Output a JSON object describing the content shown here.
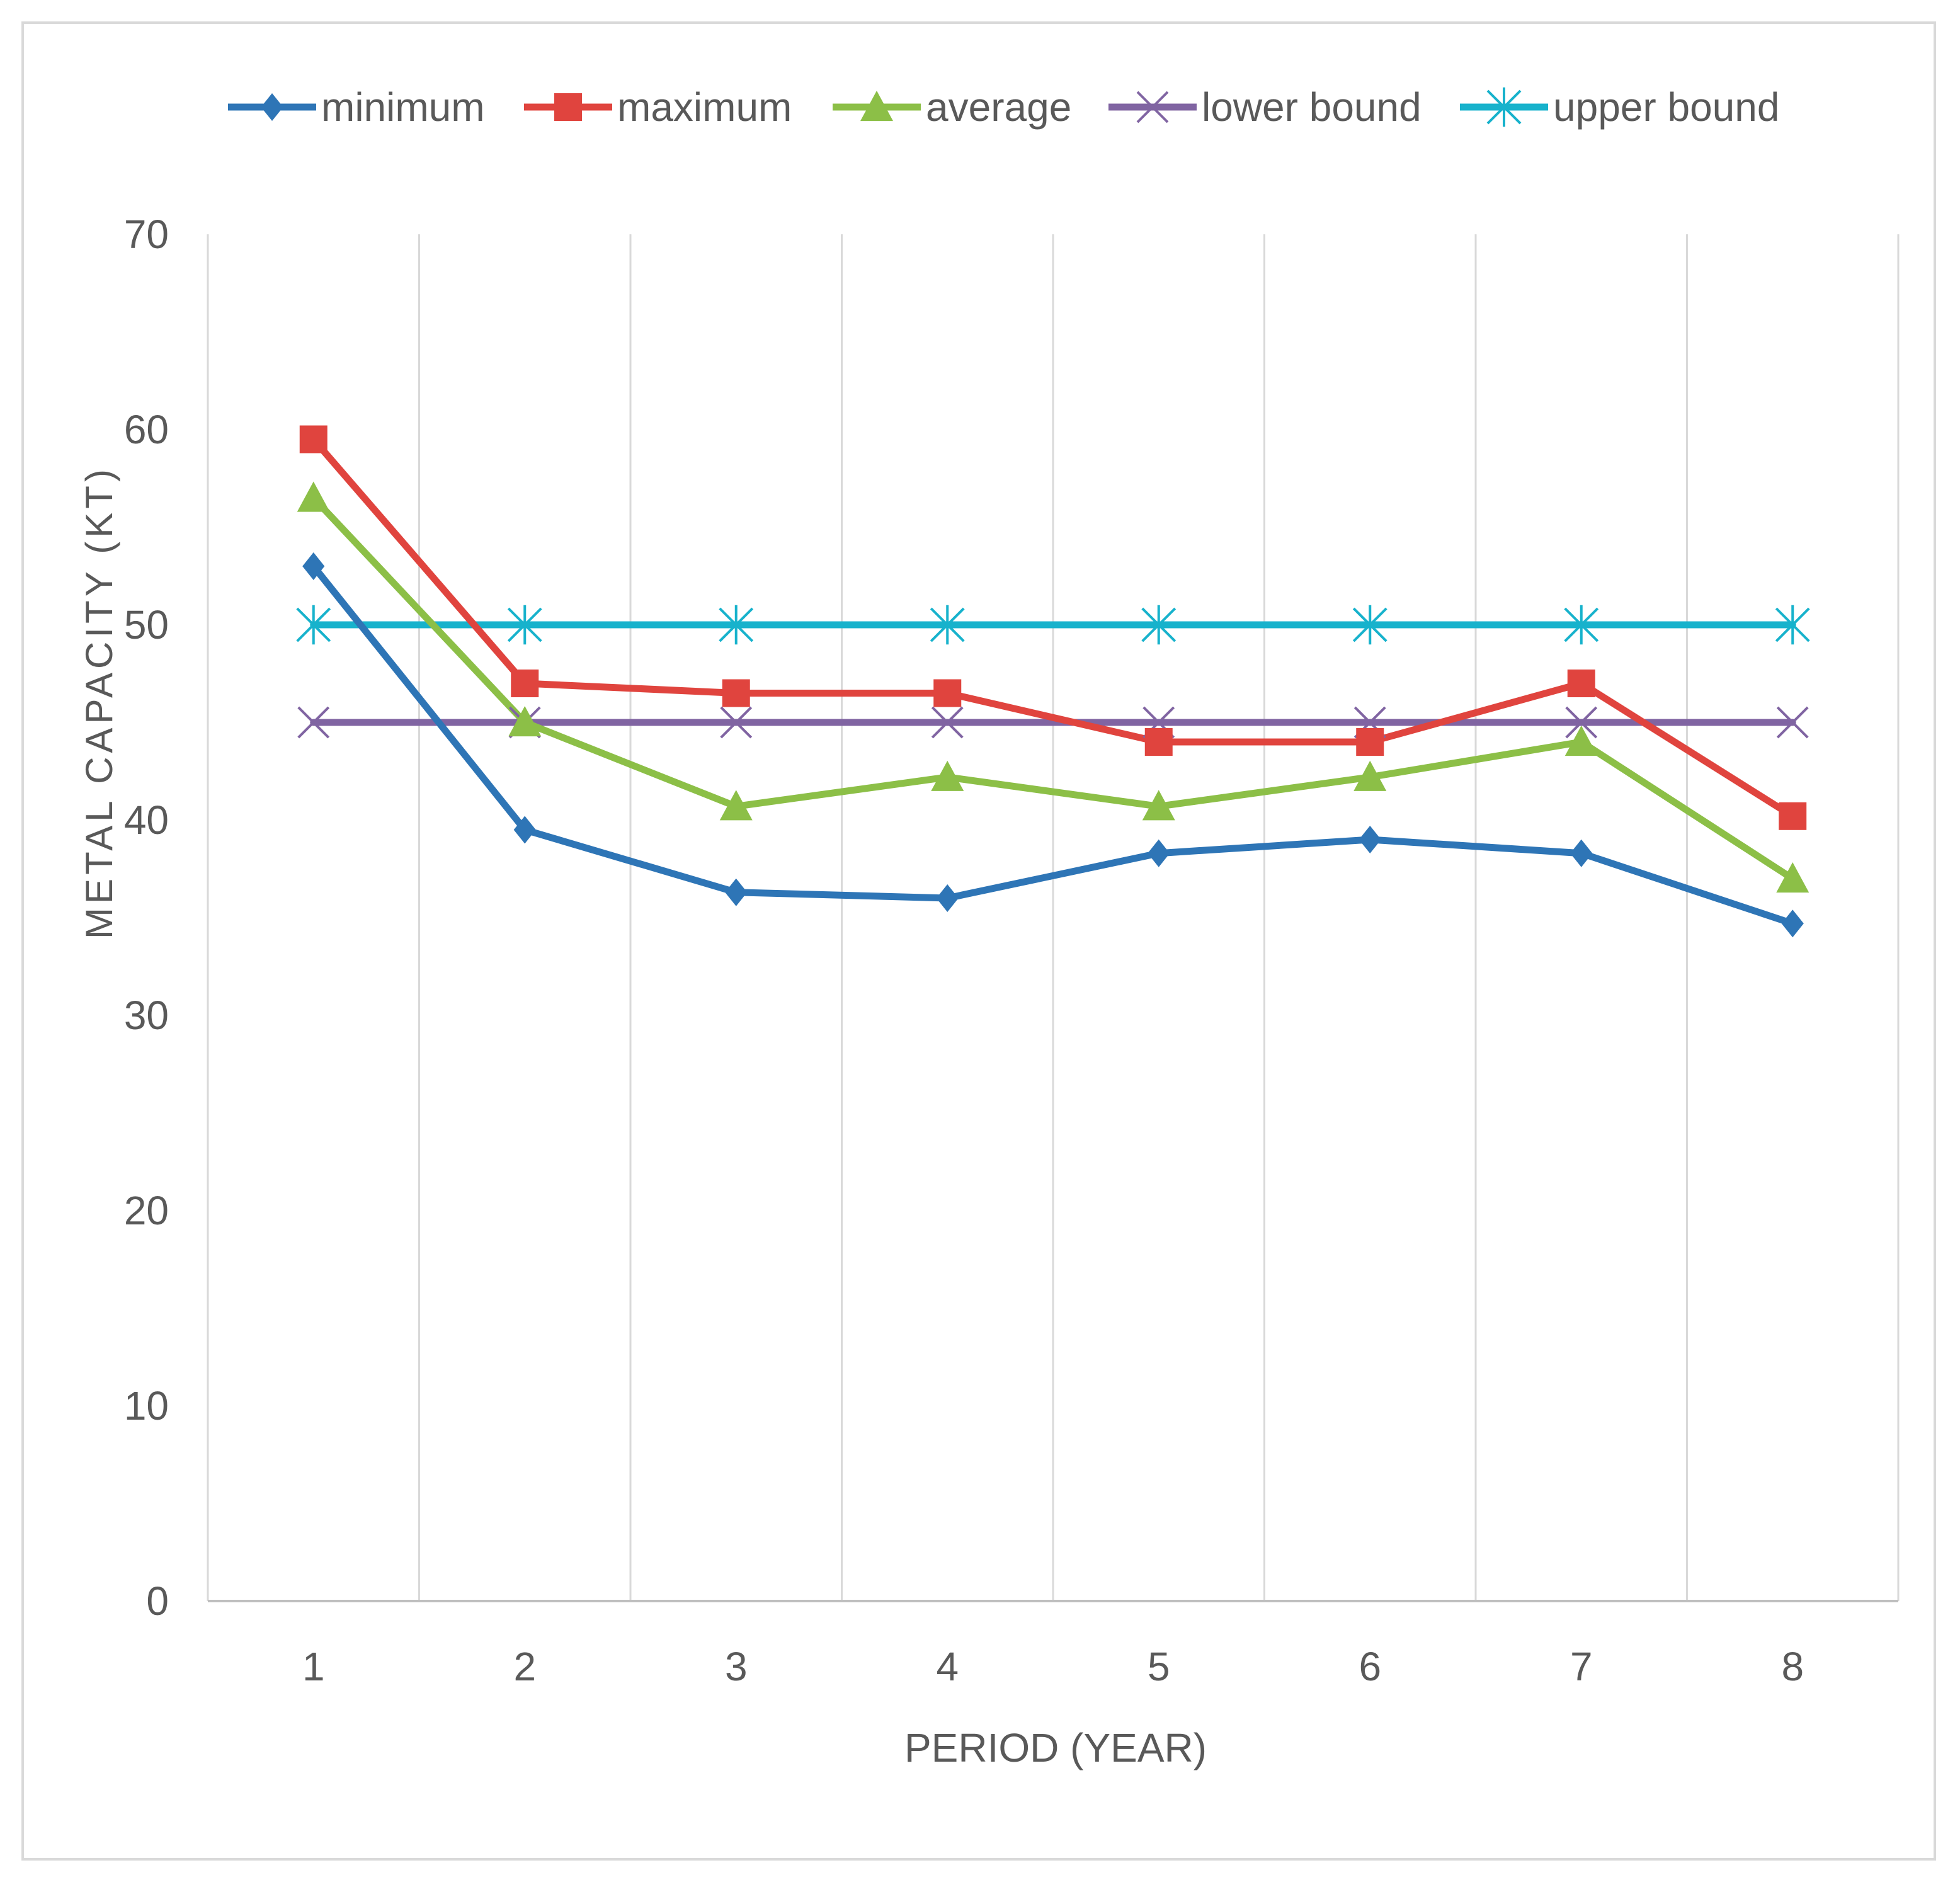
{
  "chart_data": {
    "type": "line",
    "title": "",
    "xlabel": "PERIOD (YEAR)",
    "ylabel": "METAL CAPACITY (KT)",
    "categories": [
      "1",
      "2",
      "3",
      "4",
      "5",
      "6",
      "7",
      "8"
    ],
    "ylim": [
      0,
      70
    ],
    "yticks": [
      0,
      10,
      20,
      30,
      40,
      50,
      60,
      70
    ],
    "grid": "vertical",
    "legend_position": "top",
    "series": [
      {
        "name": "minimum",
        "color": "#2e75b6",
        "marker": "diamond",
        "values": [
          53,
          39.5,
          36.3,
          36,
          38.3,
          39,
          38.3,
          34.7
        ]
      },
      {
        "name": "maximum",
        "color": "#e0443e",
        "marker": "square",
        "values": [
          59.5,
          47,
          46.5,
          46.5,
          44,
          44,
          47,
          40.2
        ]
      },
      {
        "name": "average",
        "color": "#8cbf47",
        "marker": "triangle",
        "values": [
          56.5,
          45,
          40.7,
          42.2,
          40.7,
          42.2,
          44,
          37
        ]
      },
      {
        "name": "lower bound",
        "color": "#8064a2",
        "marker": "x",
        "values": [
          45,
          45,
          45,
          45,
          45,
          45,
          45,
          45
        ]
      },
      {
        "name": "upper bound",
        "color": "#17b2cc",
        "marker": "star",
        "values": [
          50,
          50,
          50,
          50,
          50,
          50,
          50,
          50
        ]
      }
    ]
  }
}
